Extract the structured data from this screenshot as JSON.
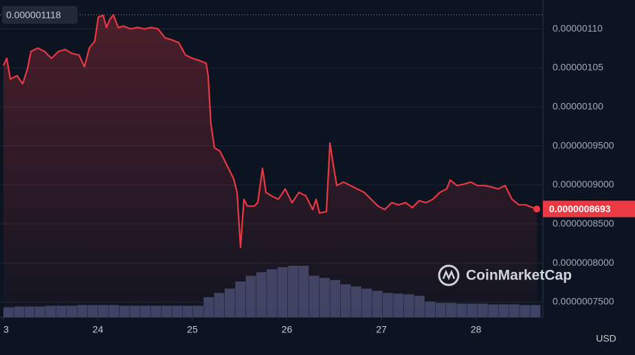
{
  "chart_data": {
    "type": "line",
    "x": [
      23.0,
      23.036,
      23.073,
      23.145,
      23.204,
      23.255,
      23.291,
      23.364,
      23.436,
      23.509,
      23.582,
      23.655,
      23.727,
      23.8,
      23.858,
      23.909,
      23.967,
      24.004,
      24.055,
      24.091,
      24.127,
      24.164,
      24.215,
      24.273,
      24.345,
      24.418,
      24.491,
      24.564,
      24.636,
      24.709,
      24.782,
      24.855,
      24.927,
      25.0,
      25.073,
      25.145,
      25.167,
      25.196,
      25.233,
      25.291,
      25.364,
      25.436,
      25.473,
      25.509,
      25.545,
      25.582,
      25.655,
      25.691,
      25.742,
      25.778,
      25.836,
      25.909,
      25.982,
      26.055,
      26.127,
      26.2,
      26.273,
      26.309,
      26.345,
      26.418,
      26.455,
      26.491,
      26.527,
      26.6,
      26.673,
      26.745,
      26.818,
      26.891,
      26.964,
      27.036,
      27.109,
      27.182,
      27.255,
      27.327,
      27.4,
      27.473,
      27.545,
      27.618,
      27.691,
      27.727,
      27.8,
      27.873,
      27.945,
      28.018,
      28.091,
      28.164,
      28.236,
      28.309,
      28.382,
      28.455,
      28.527,
      28.6,
      28.644
    ],
    "series": [
      {
        "color": "#ea3943",
        "values": [
          1.0533e-06,
          1.0622e-06,
          1.0357e-06,
          1.0401e-06,
          1.0296e-06,
          1.0489e-06,
          1.071e-06,
          1.0754e-06,
          1.071e-06,
          1.0622e-06,
          1.071e-06,
          1.0736e-06,
          1.0683e-06,
          1.0665e-06,
          1.0516e-06,
          1.0754e-06,
          1.0842e-06,
          1.115e-06,
          1.1176e-06,
          1.1018e-06,
          1.1123e-06,
          1.118e-06,
          1.1018e-06,
          1.1035e-06,
          1.1e-06,
          1.1018e-06,
          1.1e-06,
          1.1018e-06,
          1.1e-06,
          1.0886e-06,
          1.0859e-06,
          1.0824e-06,
          1.0665e-06,
          1.0622e-06,
          1.0595e-06,
          1.056e-06,
          1.0401e-06,
          9.785e-07,
          9.477e-07,
          9.433e-07,
          9.257e-07,
          9.081e-07,
          8.905e-07,
          8.201e-07,
          8.817e-07,
          8.729e-07,
          8.729e-07,
          8.773e-07,
          9.213e-07,
          8.905e-07,
          8.861e-07,
          8.817e-07,
          8.949e-07,
          8.773e-07,
          8.905e-07,
          8.861e-07,
          8.685e-07,
          8.817e-07,
          8.641e-07,
          8.658e-07,
          9.539e-07,
          9.257e-07,
          8.993e-07,
          9.037e-07,
          8.993e-07,
          8.949e-07,
          8.905e-07,
          8.817e-07,
          8.729e-07,
          8.685e-07,
          8.773e-07,
          8.746e-07,
          8.773e-07,
          8.711e-07,
          8.799e-07,
          8.773e-07,
          8.817e-07,
          8.905e-07,
          8.949e-07,
          9.063e-07,
          8.993e-07,
          9.011e-07,
          9.037e-07,
          8.993e-07,
          8.993e-07,
          8.975e-07,
          8.949e-07,
          8.993e-07,
          8.817e-07,
          8.746e-07,
          8.746e-07,
          8.711e-07,
          8.693e-07
        ]
      }
    ],
    "volume": {
      "color": "#3a4466",
      "values": [
        14,
        15,
        15,
        15,
        16,
        16,
        16,
        17,
        17,
        17,
        17,
        16,
        16,
        16,
        16,
        16,
        16,
        16,
        16,
        28,
        34,
        40,
        50,
        58,
        63,
        67,
        70,
        72,
        72,
        58,
        55,
        52,
        46,
        43,
        40,
        37,
        34,
        33,
        32,
        30,
        22,
        20,
        20,
        19,
        19,
        19,
        18,
        18,
        18,
        17,
        17
      ]
    },
    "xlim": [
      22.964,
      28.709
    ],
    "xticks": [
      {
        "value": 23,
        "label": "3"
      },
      24,
      25,
      26,
      27,
      28
    ],
    "ylim": [
      7.306e-07,
      1.137e-06
    ],
    "yticks": [
      {
        "value": 1.1e-06,
        "label": "0.00000110"
      },
      {
        "value": 1.05e-06,
        "label": "0.00000105"
      },
      {
        "value": 1e-06,
        "label": "0.00000100"
      },
      {
        "value": 9.5e-07,
        "label": "0.0000009500"
      },
      {
        "value": 9e-07,
        "label": "0.0000009000"
      },
      {
        "value": 8.5e-07,
        "label": "0.0000008500"
      },
      {
        "value": 8e-07,
        "label": "0.0000008000"
      },
      {
        "value": 7.5e-07,
        "label": "0.0000007500"
      }
    ],
    "grid": true,
    "high": {
      "value": 1.118e-06,
      "label": "0.000001118"
    },
    "last_price": {
      "value": 8.693e-07,
      "label": "0.0000008693"
    },
    "watermark": "CoinMarketCap",
    "currency": "USD"
  }
}
